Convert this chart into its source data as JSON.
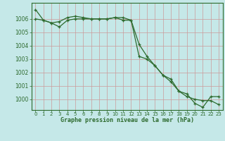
{
  "title": "Graphe pression niveau de la mer (hPa)",
  "background_color": "#c5e8e8",
  "grid_color": "#cc9999",
  "line_color": "#2d6a2d",
  "marker_color": "#2d6a2d",
  "xlim": [
    -0.5,
    23.5
  ],
  "ylim": [
    999.2,
    1007.2
  ],
  "xticks": [
    0,
    1,
    2,
    3,
    4,
    5,
    6,
    7,
    8,
    9,
    10,
    11,
    12,
    13,
    14,
    15,
    16,
    17,
    18,
    19,
    20,
    21,
    22,
    23
  ],
  "yticks": [
    1000,
    1001,
    1002,
    1003,
    1004,
    1005,
    1006
  ],
  "series1": [
    1006.7,
    1005.9,
    1005.7,
    1005.8,
    1006.1,
    1006.2,
    1006.1,
    1006.0,
    1006.0,
    1006.0,
    1006.1,
    1005.9,
    1005.9,
    1004.1,
    1003.2,
    1002.5,
    1001.8,
    1001.3,
    1000.6,
    1000.2,
    1000.0,
    999.9,
    999.9,
    999.6
  ],
  "series2": [
    1006.0,
    1005.9,
    1005.7,
    1005.4,
    1005.9,
    1006.0,
    1006.0,
    1006.0,
    1006.0,
    1006.0,
    1006.1,
    1006.1,
    1005.9,
    1003.2,
    1003.0,
    1002.5,
    1001.8,
    1001.5,
    1000.6,
    1000.4,
    999.7,
    999.4,
    1000.2,
    1000.2
  ]
}
